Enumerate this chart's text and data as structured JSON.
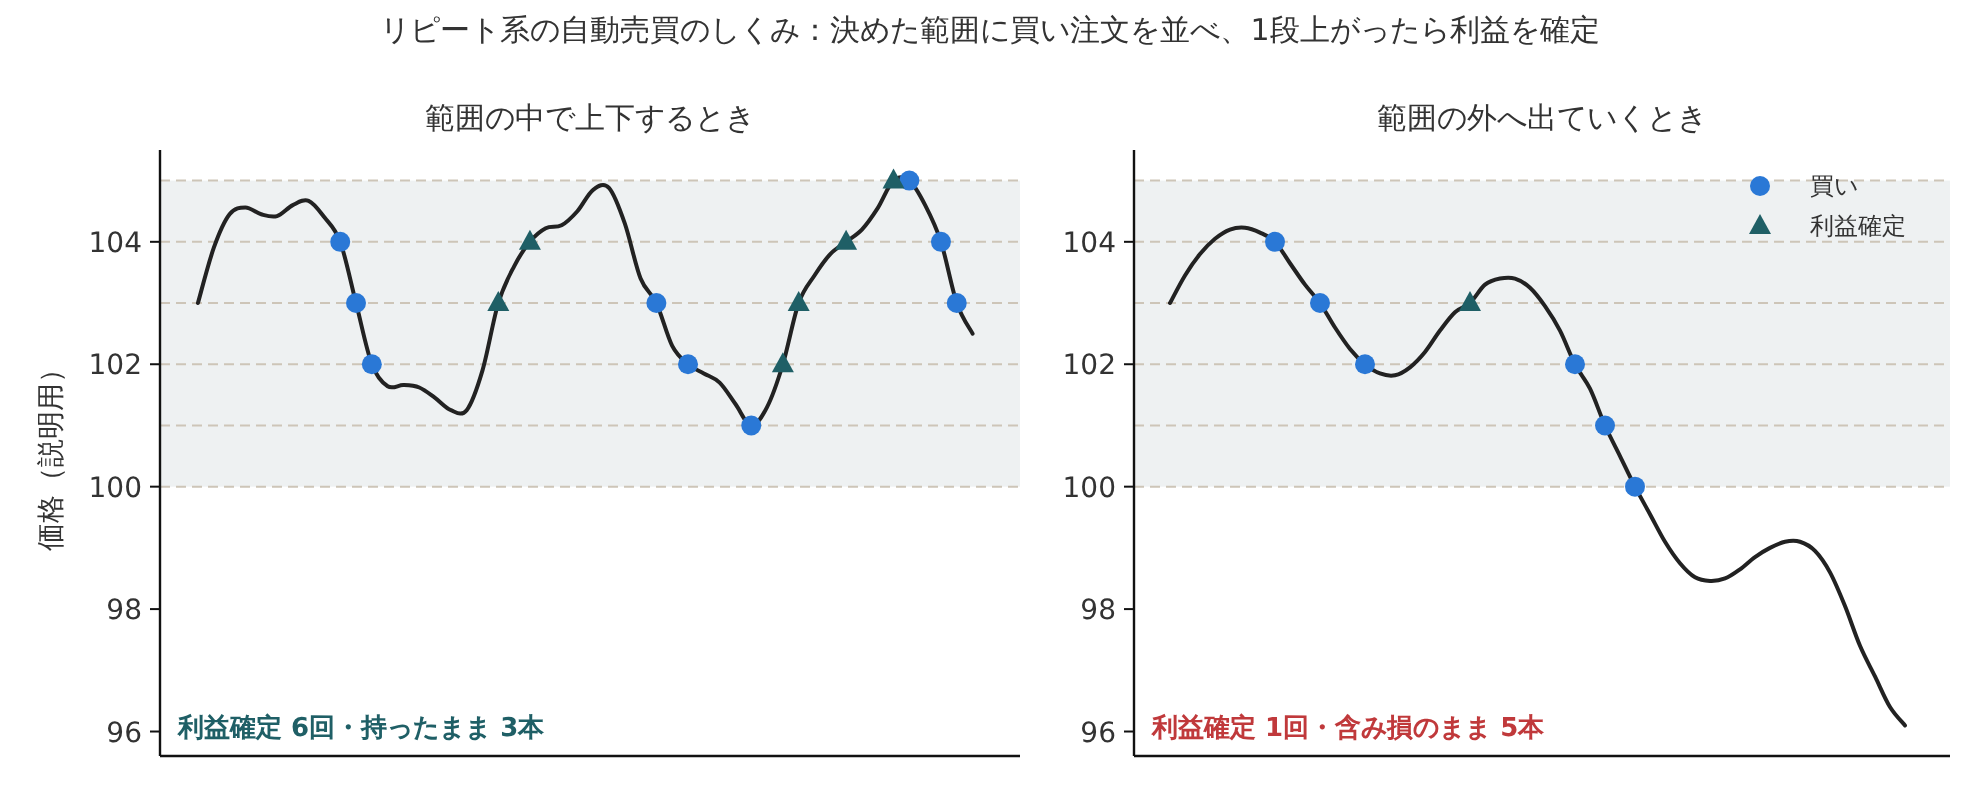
{
  "chart_data": [
    {
      "type": "other",
      "title": "リピート系の自動売買のしくみ：決めた範囲に買い注文を並べ、1段上がったら利益を確定"
    },
    {
      "type": "line",
      "title": "範囲の中で上下するとき",
      "ylabel": "価格（説明用）",
      "categories": [
        null,
        null,
        null,
        null,
        null,
        null,
        null,
        null,
        null,
        null,
        null,
        null,
        null,
        null,
        null,
        null,
        null,
        null,
        null,
        null,
        null,
        null,
        null,
        null,
        null,
        null,
        null,
        null,
        null,
        null,
        null,
        null,
        null,
        null,
        null,
        null,
        null,
        null,
        null,
        null,
        null,
        null,
        null,
        null,
        null,
        null,
        null,
        null,
        null,
        null
      ],
      "ylim": [
        95.6,
        105.5
      ],
      "yticks": [
        96,
        98,
        100,
        102,
        104
      ],
      "tick_labels": "y",
      "bands": [
        {
          "axis": "y",
          "from": 100,
          "to": 105,
          "color": "#eef1f2"
        }
      ],
      "ref_lines": [
        {
          "axis": "y",
          "value": 100,
          "color": "#cdc5b8",
          "line_style": "dashed"
        },
        {
          "axis": "y",
          "value": 101,
          "color": "#cdc5b8",
          "line_style": "dashed"
        },
        {
          "axis": "y",
          "value": 102,
          "color": "#cdc5b8",
          "line_style": "dashed"
        },
        {
          "axis": "y",
          "value": 103,
          "color": "#cdc5b8",
          "line_style": "dashed"
        },
        {
          "axis": "y",
          "value": 104,
          "color": "#cdc5b8",
          "line_style": "dashed"
        },
        {
          "axis": "y",
          "value": 105,
          "color": "#cdc5b8",
          "line_style": "dashed"
        }
      ],
      "series": [
        {
          "type": "line",
          "color": "#222222",
          "values": [
            103.0,
            103.9,
            104.45,
            104.56,
            104.45,
            104.42,
            104.6,
            104.67,
            104.4,
            104,
            103,
            102,
            101.64,
            101.66,
            101.62,
            101.45,
            101.25,
            101.25,
            101.9,
            103,
            103.6,
            104,
            104.22,
            104.27,
            104.5,
            104.85,
            104.88,
            104.3,
            103.4,
            103,
            102.3,
            102,
            101.85,
            101.7,
            101.35,
            101,
            101.3,
            102,
            103,
            103.45,
            103.8,
            104,
            104.2,
            104.55,
            105,
            105,
            104.6,
            104,
            103,
            102.5
          ]
        },
        {
          "type": "scatter",
          "marker": "circle",
          "color": "#2a78d6",
          "values": [
            null,
            null,
            null,
            null,
            null,
            null,
            null,
            null,
            null,
            104,
            103,
            102,
            null,
            null,
            null,
            null,
            null,
            null,
            null,
            null,
            null,
            null,
            null,
            null,
            null,
            null,
            null,
            null,
            null,
            103,
            null,
            102,
            null,
            null,
            null,
            101,
            null,
            null,
            null,
            null,
            null,
            null,
            null,
            null,
            null,
            105,
            null,
            104,
            103,
            null
          ]
        },
        {
          "type": "scatter",
          "marker": "triangle",
          "color": "#1f5f66",
          "values": [
            null,
            null,
            null,
            null,
            null,
            null,
            null,
            null,
            null,
            null,
            null,
            null,
            null,
            null,
            null,
            null,
            null,
            null,
            null,
            103,
            null,
            104,
            null,
            null,
            null,
            null,
            null,
            null,
            null,
            null,
            null,
            null,
            null,
            null,
            null,
            null,
            null,
            102,
            103,
            null,
            null,
            104,
            null,
            null,
            105,
            null,
            null,
            null,
            null,
            null
          ]
        }
      ],
      "annotations": [
        "利益確定 6回・持ったまま 3本"
      ]
    },
    {
      "type": "line",
      "title": "範囲の外へ出ていくとき",
      "categories": [
        null,
        null,
        null,
        null,
        null,
        null,
        null,
        null,
        null,
        null,
        null,
        null,
        null,
        null,
        null,
        null,
        null,
        null,
        null,
        null,
        null,
        null,
        null,
        null,
        null,
        null,
        null,
        null,
        null,
        null,
        null,
        null,
        null,
        null,
        null,
        null,
        null,
        null,
        null,
        null,
        null,
        null,
        null,
        null,
        null,
        null,
        null,
        null,
        null,
        null
      ],
      "ylim": [
        95.6,
        105.5
      ],
      "yticks": [
        96,
        98,
        100,
        102,
        104
      ],
      "tick_labels": "y",
      "legend": "top right",
      "bands": [
        {
          "axis": "y",
          "from": 100,
          "to": 105,
          "color": "#eef1f2"
        }
      ],
      "ref_lines": [
        {
          "axis": "y",
          "value": 100,
          "color": "#cdc5b8",
          "line_style": "dashed"
        },
        {
          "axis": "y",
          "value": 101,
          "color": "#cdc5b8",
          "line_style": "dashed"
        },
        {
          "axis": "y",
          "value": 102,
          "color": "#cdc5b8",
          "line_style": "dashed"
        },
        {
          "axis": "y",
          "value": 103,
          "color": "#cdc5b8",
          "line_style": "dashed"
        },
        {
          "axis": "y",
          "value": 104,
          "color": "#cdc5b8",
          "line_style": "dashed"
        },
        {
          "axis": "y",
          "value": 105,
          "color": "#cdc5b8",
          "line_style": "dashed"
        }
      ],
      "series": [
        {
          "type": "line",
          "color": "#222222",
          "values": [
            103.0,
            103.45,
            103.8,
            104.05,
            104.2,
            104.23,
            104.15,
            104,
            103.65,
            103.3,
            103,
            102.6,
            102.25,
            102,
            101.85,
            101.82,
            101.95,
            102.2,
            102.55,
            102.85,
            103,
            103.3,
            103.4,
            103.4,
            103.25,
            102.95,
            102.55,
            102,
            101.6,
            101,
            100.5,
            100,
            99.55,
            99.1,
            98.75,
            98.52,
            98.46,
            98.5,
            98.65,
            98.85,
            99.0,
            99.1,
            99.1,
            98.95,
            98.6,
            98.05,
            97.4,
            96.9,
            96.4,
            96.1
          ]
        },
        {
          "type": "scatter",
          "name": "買い",
          "marker": "circle",
          "color": "#2a78d6",
          "values": [
            null,
            null,
            null,
            null,
            null,
            null,
            null,
            104,
            null,
            null,
            103,
            null,
            null,
            102,
            null,
            null,
            null,
            null,
            null,
            null,
            null,
            null,
            null,
            null,
            null,
            null,
            null,
            102,
            null,
            101,
            null,
            100,
            null,
            null,
            null,
            null,
            null,
            null,
            null,
            null,
            null,
            null,
            null,
            null,
            null,
            null,
            null,
            null,
            null,
            null
          ]
        },
        {
          "type": "scatter",
          "name": "利益確定",
          "marker": "triangle",
          "color": "#1f5f66",
          "values": [
            null,
            null,
            null,
            null,
            null,
            null,
            null,
            null,
            null,
            null,
            null,
            null,
            null,
            null,
            null,
            null,
            null,
            null,
            null,
            null,
            103,
            null,
            null,
            null,
            null,
            null,
            null,
            null,
            null,
            null,
            null,
            null,
            null,
            null,
            null,
            null,
            null,
            null,
            null,
            null,
            null,
            null,
            null,
            null,
            null,
            null,
            null,
            null,
            null,
            null
          ]
        }
      ],
      "annotations": [
        "利益確定 1回・含み損のまま 5本"
      ]
    }
  ]
}
